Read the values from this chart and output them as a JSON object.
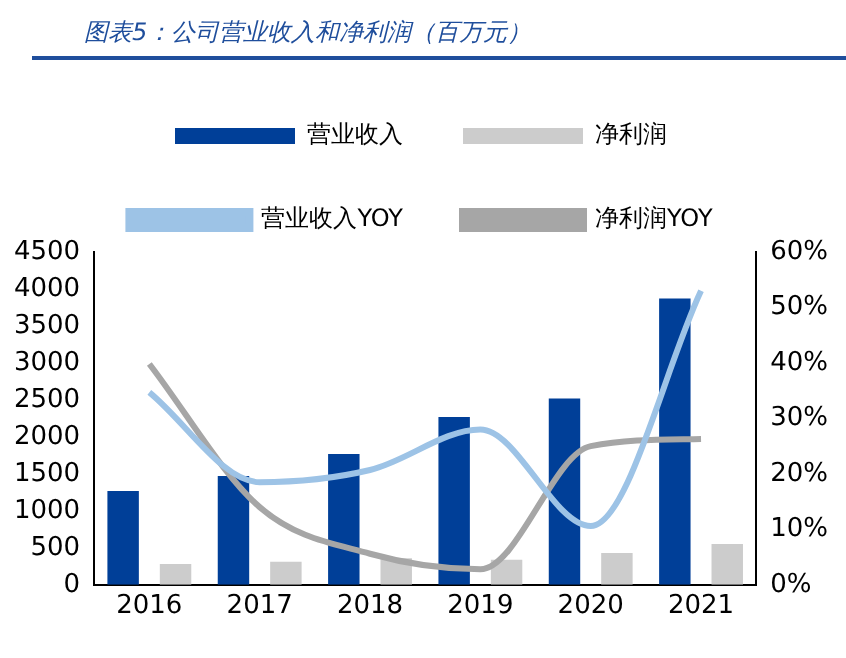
{
  "chart_data": {
    "type": "bar",
    "title": "图表5：公司营业收入和净利润（百万元）",
    "categories": [
      "2016",
      "2017",
      "2018",
      "2019",
      "2020",
      "2021"
    ],
    "series": [
      {
        "name": "营业收入",
        "color": "#003f98",
        "values": [
          1270,
          1470,
          1770,
          2270,
          2520,
          3870
        ]
      },
      {
        "name": "净利润",
        "color": "#cccccc",
        "values": [
          280,
          310,
          360,
          340,
          430,
          550
        ]
      },
      {
        "name": "营业收入YOY",
        "type": "line",
        "axis": "y2",
        "color": "#9dc3e6",
        "values": [
          34.7,
          18.5,
          20.7,
          28,
          10.6,
          53
        ]
      },
      {
        "name": "净利润YOY",
        "type": "line",
        "axis": "y2",
        "color": "#a6a6a6",
        "values": [
          39.8,
          14,
          5.6,
          2.8,
          25,
          26.3
        ]
      }
    ],
    "ylim": [
      0,
      4500
    ],
    "yticks": [
      0,
      500,
      1000,
      1500,
      2000,
      2500,
      3000,
      3500,
      4000,
      4500
    ],
    "y2lim": [
      0,
      60
    ],
    "y2ticks": [
      {
        "value": 0,
        "label": "0%"
      },
      {
        "value": 10,
        "label": "10%"
      },
      {
        "value": 20,
        "label": "20%"
      },
      {
        "value": 30,
        "label": "30%"
      },
      {
        "value": 40,
        "label": "40%"
      },
      {
        "value": 50,
        "label": "50%"
      },
      {
        "value": 60,
        "label": "60%"
      }
    ],
    "grid": false,
    "legend": "top",
    "marker": "none"
  }
}
